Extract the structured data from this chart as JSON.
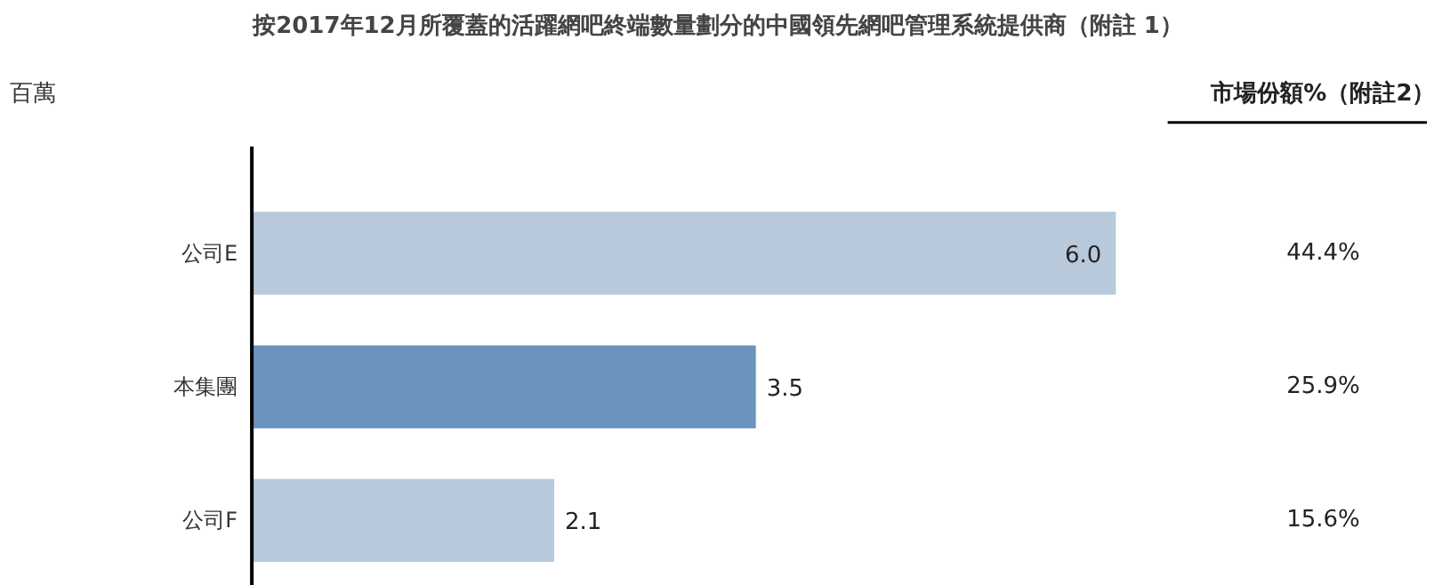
{
  "chart_data": {
    "type": "bar",
    "orientation": "horizontal",
    "title": "按2017年12月所覆蓋的活躍網吧終端數量劃分的中國領先網吧管理系統提供商（附註 1）",
    "categories": [
      "公司E",
      "本集團",
      "公司F"
    ],
    "values": [
      6.0,
      3.5,
      2.1
    ],
    "colors": [
      "#b8c9dc",
      "#6a93bd",
      "#b8c9dc"
    ],
    "value_labels": [
      "6.0",
      "3.5",
      "2.1"
    ],
    "annotations": [
      "百萬",
      "市場份額%（附註2）",
      "44.4%",
      "25.9%",
      "15.6%"
    ],
    "grid": false
  }
}
